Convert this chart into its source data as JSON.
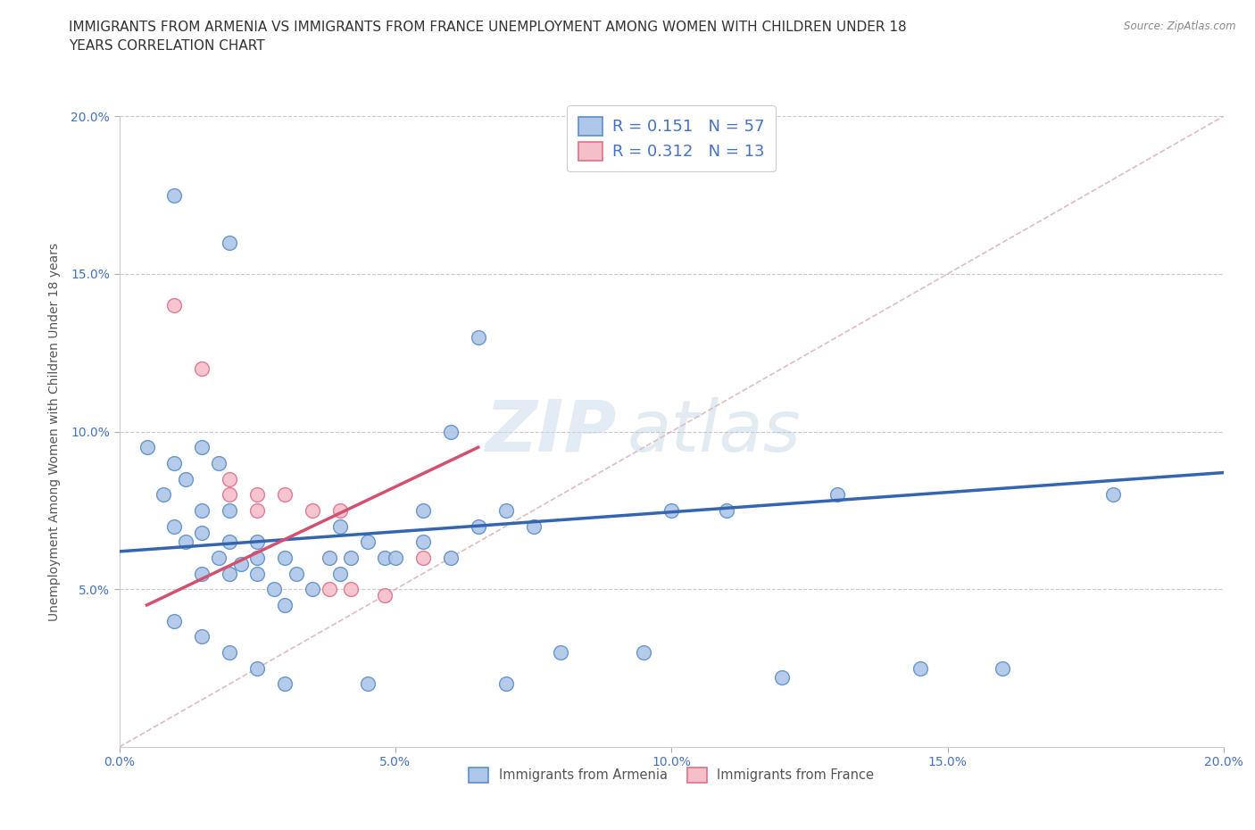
{
  "title_line1": "IMMIGRANTS FROM ARMENIA VS IMMIGRANTS FROM FRANCE UNEMPLOYMENT AMONG WOMEN WITH CHILDREN UNDER 18",
  "title_line2": "YEARS CORRELATION CHART",
  "source": "Source: ZipAtlas.com",
  "ylabel": "Unemployment Among Women with Children Under 18 years",
  "xlim": [
    0.0,
    0.2
  ],
  "ylim": [
    0.0,
    0.2
  ],
  "xticks": [
    0.0,
    0.05,
    0.1,
    0.15,
    0.2
  ],
  "yticks": [
    0.05,
    0.1,
    0.15,
    0.2
  ],
  "xtick_labels": [
    "0.0%",
    "5.0%",
    "10.0%",
    "15.0%",
    "20.0%"
  ],
  "ytick_labels": [
    "5.0%",
    "10.0%",
    "15.0%",
    "20.0%"
  ],
  "armenia_color": "#aec6e8",
  "france_color": "#f5bfca",
  "armenia_edge": "#5b8fc9",
  "france_edge": "#e0708a",
  "armenia_line_color": "#3465b0",
  "france_line_color": "#d45070",
  "diag_line_color": "#d4a0a8",
  "R_armenia": 0.151,
  "N_armenia": 57,
  "R_france": 0.312,
  "N_france": 13,
  "armenia_scatter_x": [
    0.01,
    0.02,
    0.005,
    0.01,
    0.015,
    0.018,
    0.012,
    0.008,
    0.015,
    0.02,
    0.01,
    0.015,
    0.012,
    0.02,
    0.025,
    0.018,
    0.022,
    0.015,
    0.02,
    0.025,
    0.025,
    0.03,
    0.028,
    0.032,
    0.035,
    0.03,
    0.038,
    0.04,
    0.04,
    0.045,
    0.042,
    0.048,
    0.05,
    0.055,
    0.06,
    0.065,
    0.055,
    0.06,
    0.065,
    0.07,
    0.075,
    0.08,
    0.095,
    0.1,
    0.11,
    0.12,
    0.13,
    0.145,
    0.16,
    0.18,
    0.01,
    0.015,
    0.02,
    0.025,
    0.03,
    0.045,
    0.07
  ],
  "armenia_scatter_y": [
    0.175,
    0.16,
    0.095,
    0.09,
    0.095,
    0.09,
    0.085,
    0.08,
    0.075,
    0.075,
    0.07,
    0.068,
    0.065,
    0.065,
    0.065,
    0.06,
    0.058,
    0.055,
    0.055,
    0.055,
    0.06,
    0.06,
    0.05,
    0.055,
    0.05,
    0.045,
    0.06,
    0.055,
    0.07,
    0.065,
    0.06,
    0.06,
    0.06,
    0.075,
    0.1,
    0.13,
    0.065,
    0.06,
    0.07,
    0.075,
    0.07,
    0.03,
    0.03,
    0.075,
    0.075,
    0.022,
    0.08,
    0.025,
    0.025,
    0.08,
    0.04,
    0.035,
    0.03,
    0.025,
    0.02,
    0.02,
    0.02
  ],
  "france_scatter_x": [
    0.01,
    0.015,
    0.02,
    0.02,
    0.025,
    0.025,
    0.03,
    0.035,
    0.038,
    0.04,
    0.042,
    0.048,
    0.055
  ],
  "france_scatter_y": [
    0.14,
    0.12,
    0.08,
    0.085,
    0.08,
    0.075,
    0.08,
    0.075,
    0.05,
    0.075,
    0.05,
    0.048,
    0.06
  ],
  "armenia_trend_x": [
    0.0,
    0.2
  ],
  "armenia_trend_y": [
    0.062,
    0.087
  ],
  "france_trend_x": [
    0.005,
    0.065
  ],
  "france_trend_y": [
    0.045,
    0.095
  ],
  "background_color": "#ffffff",
  "watermark_zip": "ZIP",
  "watermark_atlas": "atlas",
  "title_fontsize": 11,
  "label_fontsize": 10,
  "tick_fontsize": 10,
  "legend_fontsize": 13
}
